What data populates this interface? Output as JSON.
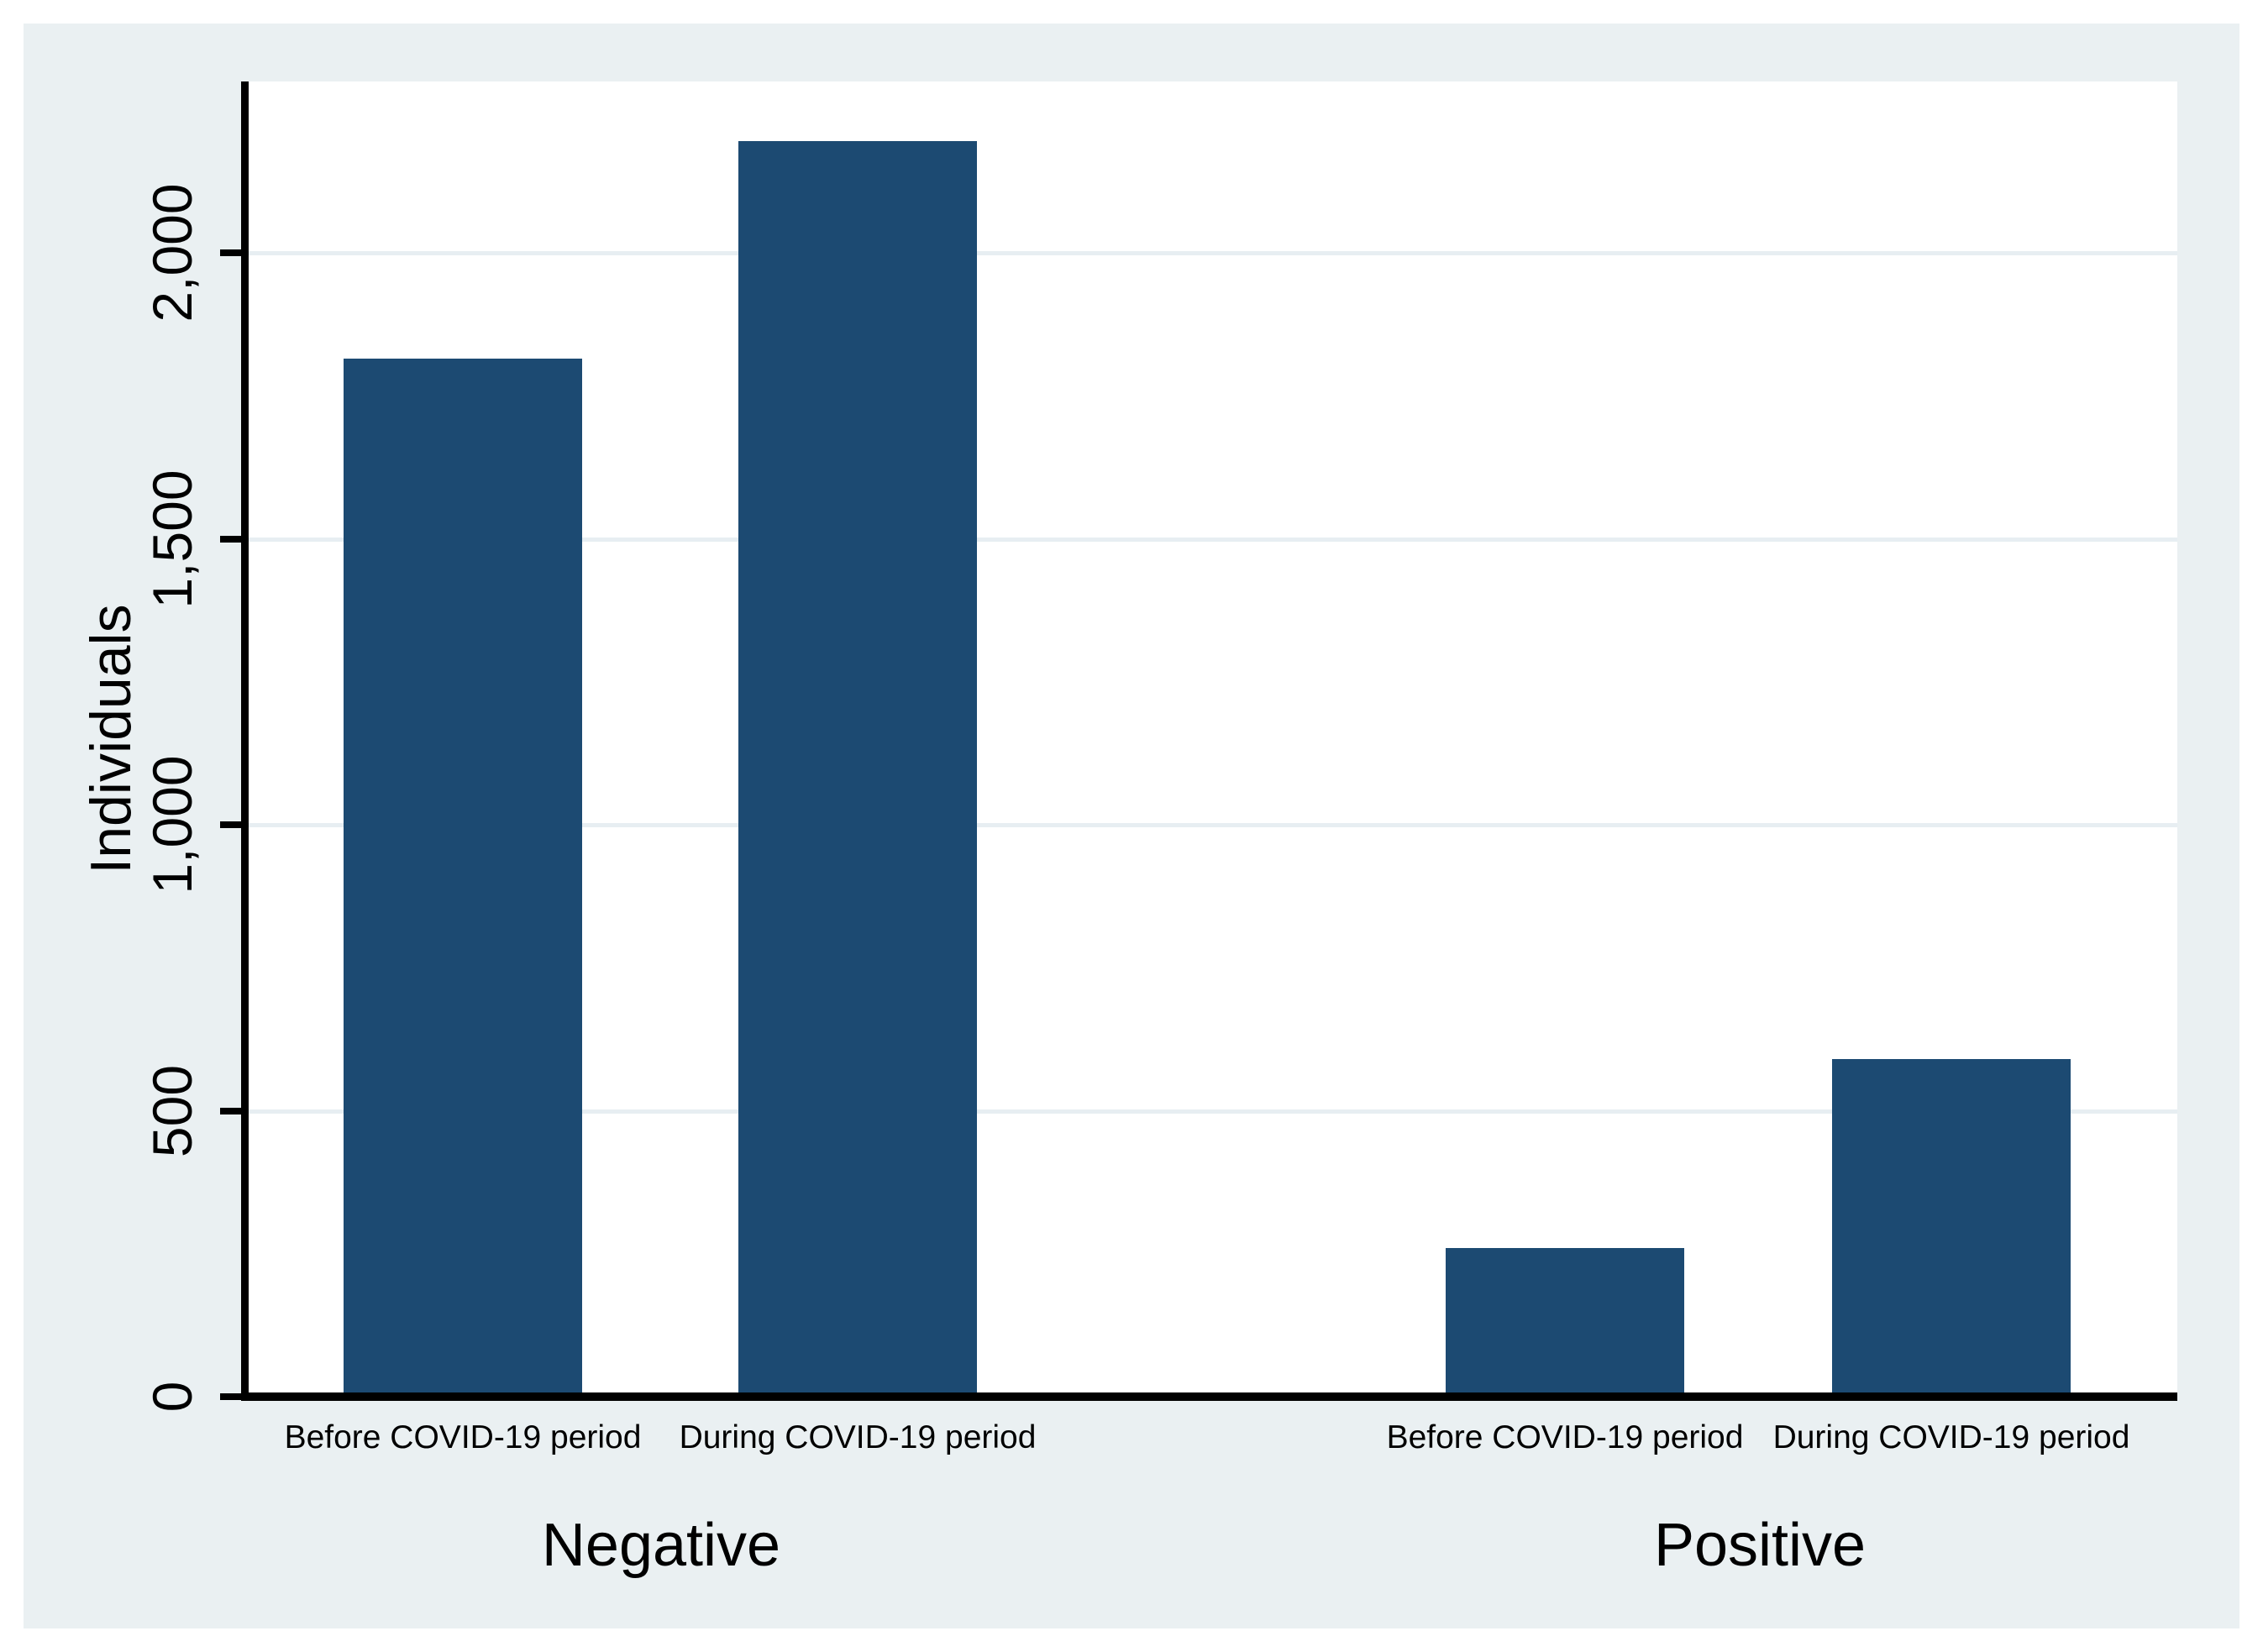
{
  "chart_data": {
    "type": "bar",
    "title": "",
    "xlabel": "",
    "ylabel": "Individuals",
    "ylim": [
      0,
      2300
    ],
    "yticks": [
      0,
      500,
      1000,
      1500,
      2000
    ],
    "ytick_labels": [
      "0",
      "500",
      "1,000",
      "1,500",
      "2,000"
    ],
    "grid": true,
    "legend": "none",
    "categories": [
      "Before COVID-19 period",
      "During COVID-19 period"
    ],
    "groups": [
      {
        "label": "Negative",
        "values": [
          1815,
          2195
        ]
      },
      {
        "label": "Positive",
        "values": [
          260,
          590
        ]
      }
    ],
    "colors": {
      "bar": "#1c4a72",
      "background": "#eaf0f2",
      "plot_background": "#ffffff",
      "gridline": "#e7eef2",
      "axis": "#000000",
      "text": "#000000"
    }
  }
}
